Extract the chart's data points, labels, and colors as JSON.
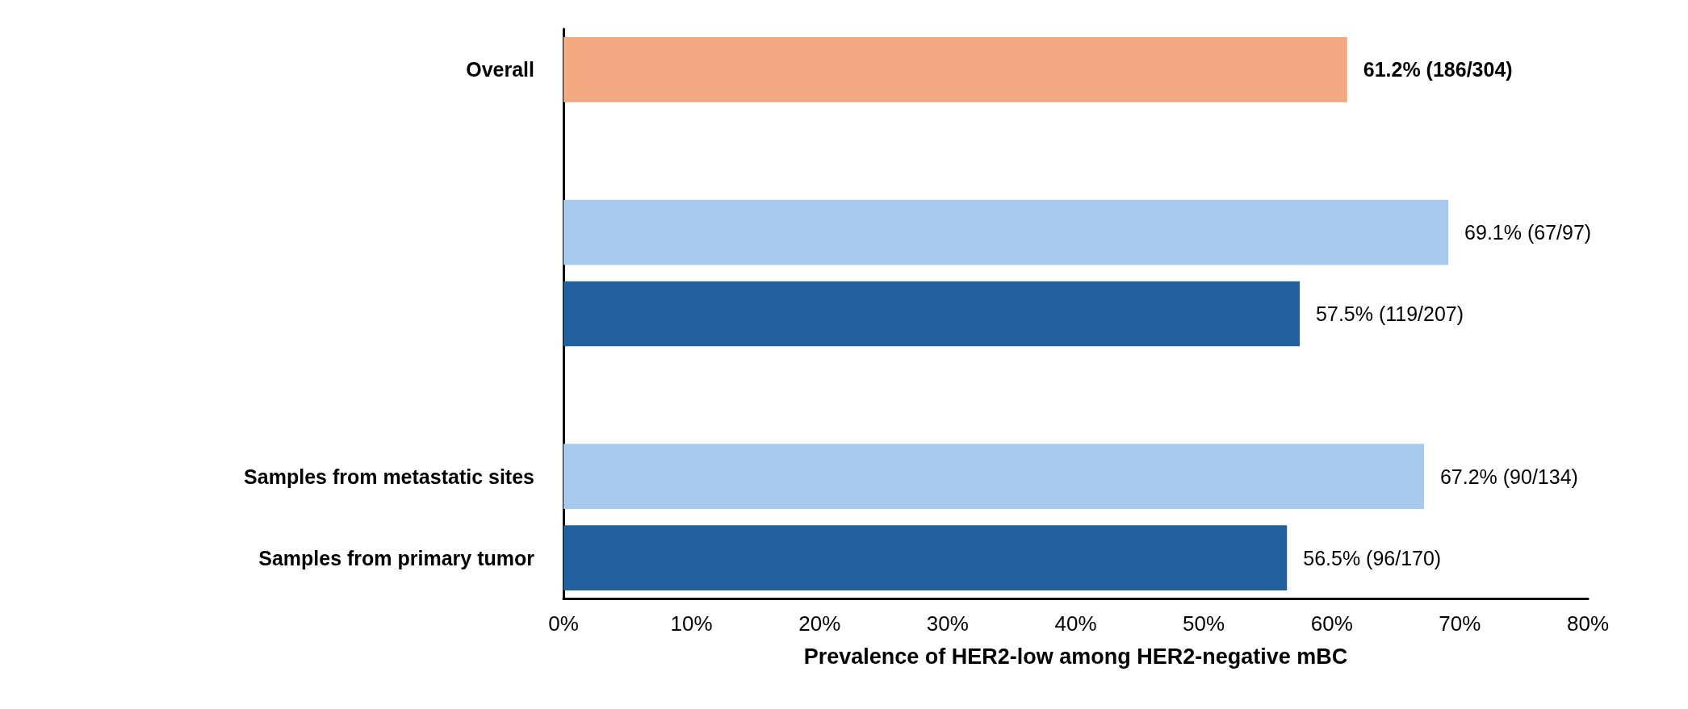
{
  "chart_data": {
    "type": "bar",
    "orientation": "horizontal",
    "xlabel": "Prevalence of HER2-low among HER2-negative mBC",
    "categories": [
      "Overall",
      null,
      null,
      null,
      null,
      "Samples from metastatic sites",
      "Samples from primary tumor"
    ],
    "values": [
      61.2,
      null,
      69.1,
      57.5,
      null,
      67.2,
      56.5
    ],
    "colors": [
      "#f2aa84",
      "#a7c9eb",
      "#a7c9eb",
      "#21609c",
      "#a7c9eb",
      "#a7c9eb",
      "#21609c"
    ],
    "value_labels": [
      "61.2% (186/304)",
      null,
      "69.1% (67/97)",
      "57.5% (119/207)",
      null,
      "67.2% (90/134)",
      "56.5% (96/170)"
    ],
    "xlim": [
      0,
      80
    ],
    "xticks": [
      {
        "value": 0,
        "label": "0%"
      },
      {
        "value": 10,
        "label": "10%"
      },
      {
        "value": 20,
        "label": "20%"
      },
      {
        "value": 30,
        "label": "30%"
      },
      {
        "value": 40,
        "label": "40%"
      },
      {
        "value": 50,
        "label": "50%"
      },
      {
        "value": 60,
        "label": "60%"
      },
      {
        "value": 70,
        "label": "70%"
      },
      {
        "value": 80,
        "label": "80%"
      }
    ],
    "grid": false
  }
}
